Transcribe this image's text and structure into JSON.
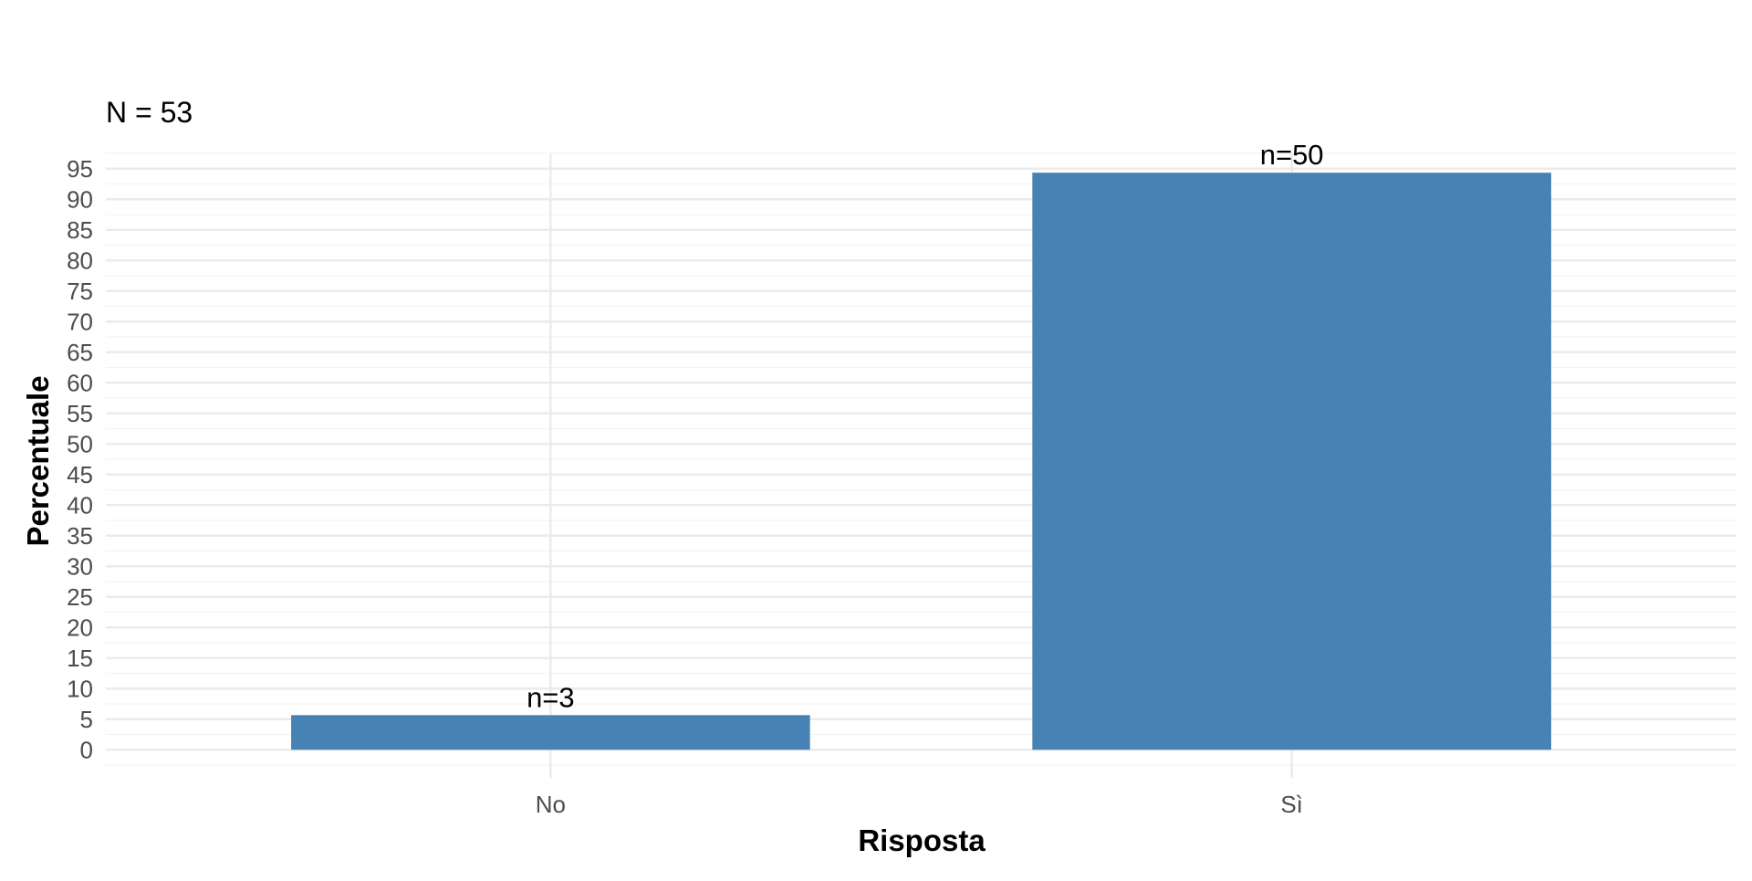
{
  "chart_data": {
    "type": "bar",
    "subtitle": "N = 53",
    "xlabel": "Risposta",
    "ylabel": "Percentuale",
    "categories": [
      "No",
      "Sì"
    ],
    "values": [
      5.66,
      94.34
    ],
    "data_labels": [
      "n=3",
      "n=50"
    ],
    "ylim": [
      -2.5,
      97.5
    ],
    "y_ticks": [
      0,
      5,
      10,
      15,
      20,
      25,
      30,
      35,
      40,
      45,
      50,
      55,
      60,
      65,
      70,
      75,
      80,
      85,
      90,
      95
    ],
    "grid": true,
    "legend": "none",
    "colors": {
      "bar": "#4682b4",
      "grid_major": "#ebebeb",
      "grid_minor": "#f3f3f3",
      "background": "#ffffff"
    }
  }
}
